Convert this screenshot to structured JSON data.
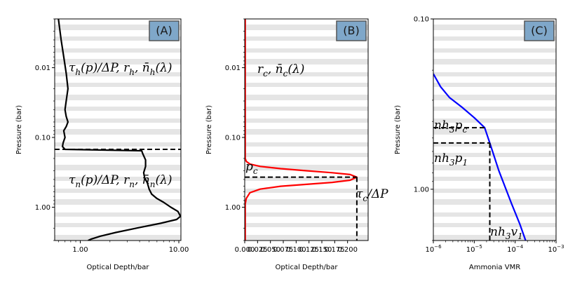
{
  "figure": {
    "background": "#ffffff",
    "band_color": "#e5e5e5",
    "tag_color": "#7fa7c9",
    "tag_border": "#555555"
  },
  "chart_data": [
    {
      "type": "line",
      "panel_tag": "(A)",
      "xscale": "log",
      "yscale": "log",
      "y_inverted": true,
      "xlim": [
        0.55,
        10.5
      ],
      "ylim": [
        0.002,
        3.0
      ],
      "xlabel": "Optical Depth/bar",
      "ylabel": "Pressure (bar)",
      "xticks": [
        1.0,
        10.0
      ],
      "xtick_labels": [
        "1.00",
        "10.00"
      ],
      "yticks": [
        0.01,
        0.1,
        1.0
      ],
      "ytick_labels": [
        "0.01",
        "0.10",
        "1.00"
      ],
      "series": [
        {
          "name": "optical depth profile",
          "color": "#000000",
          "style": "solid",
          "x": [
            0.6,
            0.64,
            0.68,
            0.72,
            0.75,
            0.72,
            0.7,
            0.72,
            0.75,
            0.72,
            0.68,
            0.7,
            0.67,
            0.66,
            0.7,
            4.2,
            4.3,
            4.6,
            4.6,
            4.4,
            4.5,
            4.8,
            5.0,
            5.3,
            6.0,
            7.0,
            8.3,
            9.8,
            10.4,
            9.5,
            6.5,
            4.0,
            2.3,
            1.6,
            1.3,
            1.2
          ],
          "y": [
            0.002,
            0.004,
            0.007,
            0.012,
            0.02,
            0.03,
            0.04,
            0.05,
            0.06,
            0.07,
            0.08,
            0.1,
            0.12,
            0.135,
            0.148,
            0.155,
            0.17,
            0.21,
            0.26,
            0.32,
            0.38,
            0.45,
            0.55,
            0.65,
            0.75,
            0.85,
            1.0,
            1.15,
            1.35,
            1.5,
            1.7,
            1.95,
            2.3,
            2.6,
            2.85,
            3.0
          ]
        },
        {
          "name": "boundary level",
          "color": "#000000",
          "style": "dashed",
          "x": [
            0.55,
            10.5
          ],
          "y": [
            0.148,
            0.148
          ]
        }
      ],
      "annotations": [
        {
          "text": "τh(p)/ΔP, rh, n̄h(λ)"
        },
        {
          "text": "τn(p)/ΔP, rn, n̄n(λ)"
        }
      ]
    },
    {
      "type": "line",
      "panel_tag": "(B)",
      "xscale": "linear",
      "yscale": "log",
      "y_inverted": true,
      "xlim": [
        0.0,
        0.24
      ],
      "ylim": [
        0.002,
        3.0
      ],
      "xlabel": "Optical Depth/bar",
      "ylabel": "Pressure (bar)",
      "xticks": [
        0.0,
        0.05,
        0.1,
        0.15,
        0.2
      ],
      "xtick_labels": [
        "0.000",
        "0.050",
        "0.100",
        "0.150",
        "0.200"
      ],
      "xticks_minor": [
        0.025,
        0.075,
        0.125,
        0.175
      ],
      "xtick_minor_labels": [
        "0.025",
        "0.075",
        "0.125",
        "0.175"
      ],
      "yticks": [
        0.01,
        0.1,
        1.0
      ],
      "ytick_labels": [
        "0.01",
        "0.10",
        "1.00"
      ],
      "series": [
        {
          "name": "cloud profile",
          "color": "#ff0000",
          "style": "solid",
          "x": [
            0.001,
            0.001,
            0.001,
            0.003,
            0.01,
            0.03,
            0.07,
            0.12,
            0.17,
            0.205,
            0.218,
            0.205,
            0.17,
            0.12,
            0.07,
            0.03,
            0.01,
            0.003,
            0.001,
            0.001,
            0.001
          ],
          "y": [
            0.002,
            0.1,
            0.2,
            0.22,
            0.24,
            0.26,
            0.28,
            0.3,
            0.32,
            0.34,
            0.37,
            0.41,
            0.44,
            0.47,
            0.5,
            0.55,
            0.62,
            0.75,
            0.9,
            1.5,
            3.0
          ]
        },
        {
          "name": "p_c marker",
          "color": "#000000",
          "style": "dashed",
          "x": [
            0.0,
            0.218
          ],
          "y": [
            0.37,
            0.37
          ]
        },
        {
          "name": "tau_c marker",
          "color": "#000000",
          "style": "dashed",
          "x": [
            0.218,
            0.218
          ],
          "y": [
            0.37,
            3.0
          ]
        }
      ],
      "annotations": [
        {
          "text": "rc, n̄c(λ)"
        },
        {
          "text": "pc"
        },
        {
          "text": "τc/ΔP"
        }
      ]
    },
    {
      "type": "line",
      "panel_tag": "(C)",
      "xscale": "log",
      "yscale": "log",
      "y_inverted": true,
      "xlim": [
        1e-06,
        0.001
      ],
      "ylim": [
        0.1,
        2.0
      ],
      "xlabel": "Ammonia VMR",
      "ylabel": "Pressure (bar)",
      "xticks": [
        1e-06,
        1e-05,
        0.0001,
        0.001
      ],
      "xtick_labels": [
        [
          "10",
          "−6"
        ],
        [
          "10",
          "−5"
        ],
        [
          "10",
          "−4"
        ],
        [
          "10",
          "−3"
        ]
      ],
      "yticks": [
        0.1,
        1.0
      ],
      "ytick_labels": [
        "0.10",
        "1.00"
      ],
      "series": [
        {
          "name": "ammonia profile",
          "color": "#0000ff",
          "style": "solid",
          "x": [
            1e-06,
            1.5e-06,
            2.5e-06,
            5e-06,
            1e-05,
            1.8e-05,
            2e-05,
            2.4e-05,
            4e-05,
            8e-05,
            0.00013,
            0.00018
          ],
          "y": [
            0.21,
            0.25,
            0.29,
            0.33,
            0.38,
            0.435,
            0.47,
            0.535,
            0.78,
            1.2,
            1.6,
            2.0
          ]
        },
        {
          "name": "p_c marker",
          "color": "#000000",
          "style": "dashed",
          "x": [
            1e-06,
            1.8e-05
          ],
          "y": [
            0.435,
            0.435
          ]
        },
        {
          "name": "p_1 marker",
          "color": "#000000",
          "style": "dashed",
          "x": [
            1e-06,
            2.4e-05
          ],
          "y": [
            0.535,
            0.535
          ]
        },
        {
          "name": "v_1 marker",
          "color": "#000000",
          "style": "dashed",
          "x": [
            2.4e-05,
            2.4e-05
          ],
          "y": [
            0.535,
            2.0
          ]
        }
      ],
      "annotations": [
        {
          "text": "nh3pc"
        },
        {
          "text": "nh3p1"
        },
        {
          "text": "nh3v1"
        }
      ]
    }
  ]
}
